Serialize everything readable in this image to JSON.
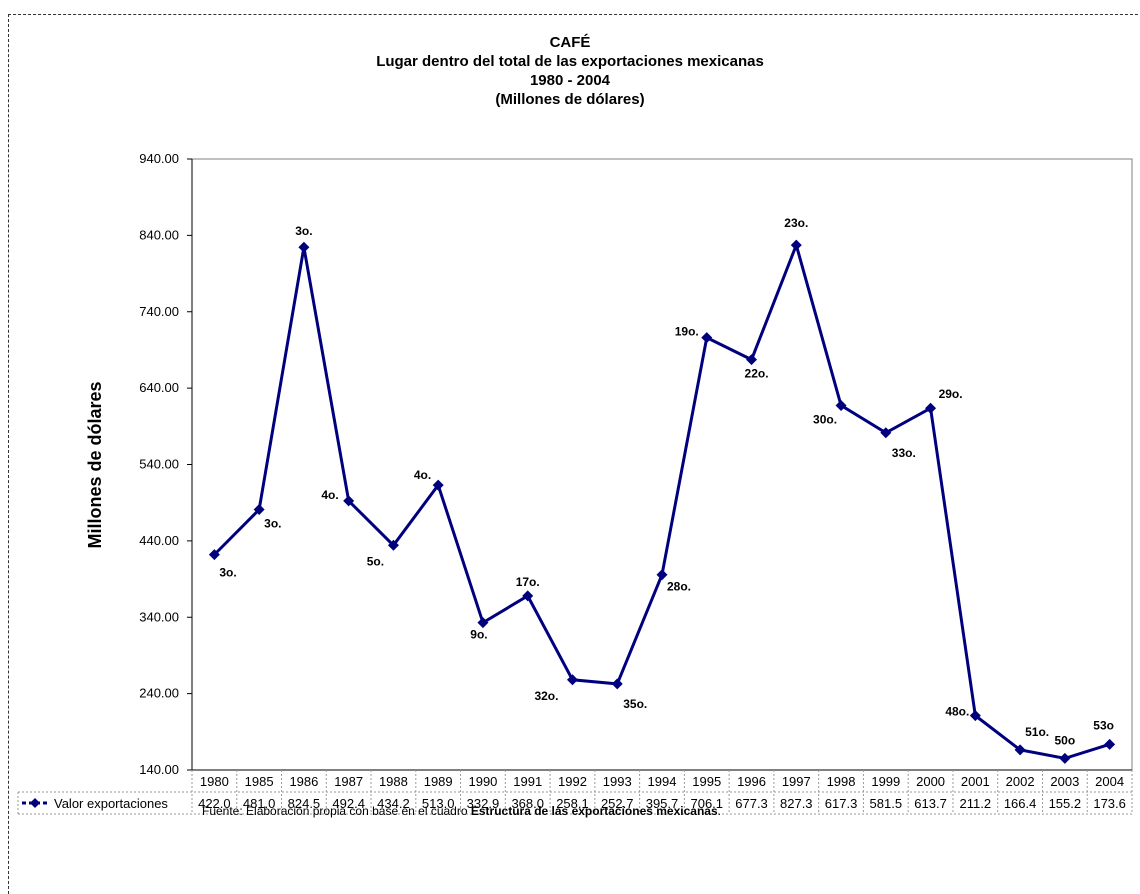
{
  "chart_data": {
    "type": "line",
    "title": "CAFÉ",
    "subtitle_lines": [
      "Lugar dentro del total de las exportaciones mexicanas",
      "1980 - 2004",
      "(Millones de dólares)"
    ],
    "ylabel": "Millones de dólares",
    "xlabel": "",
    "ylim": [
      140,
      940
    ],
    "yticks": [
      "940.00",
      "840.00",
      "740.00",
      "640.00",
      "540.00",
      "440.00",
      "340.00",
      "240.00",
      "140.00"
    ],
    "categories": [
      "1980",
      "1985",
      "1986",
      "1987",
      "1988",
      "1989",
      "1990",
      "1991",
      "1992",
      "1993",
      "1994",
      "1995",
      "1996",
      "1997",
      "1998",
      "1999",
      "2000",
      "2001",
      "2002",
      "2003",
      "2004"
    ],
    "series": [
      {
        "name": "Valor exportaciones",
        "color": "#00007f",
        "values": [
          422.0,
          481.0,
          824.5,
          492.4,
          434.2,
          513.0,
          332.9,
          368.0,
          258.1,
          252.7,
          395.7,
          706.1,
          677.3,
          827.3,
          617.3,
          581.5,
          613.7,
          211.2,
          166.4,
          155.2,
          173.6
        ],
        "table_values": [
          "422.0",
          "481.0",
          "824.5",
          "492.4",
          "434.2",
          "513.0",
          "332.9",
          "368.0",
          "258.1",
          "252.7",
          "395.7",
          "706.1",
          "677.3",
          "827.3",
          "617.3",
          "581.5",
          "613.7",
          "211.2",
          "166.4",
          "155.2",
          "173.6"
        ]
      }
    ],
    "data_labels": [
      "3o.",
      "3o.",
      "3o.",
      "4o.",
      "5o.",
      "4o.",
      "9o.",
      "17o.",
      "32o.",
      "35o.",
      "28o.",
      "19o.",
      "22o.",
      "23o.",
      "30o.",
      "33o.",
      "29o.",
      "48o.",
      "51o.",
      "50o",
      "53o"
    ],
    "grid": false,
    "legend": "data-table"
  },
  "source": {
    "prefix": "Fuente: Elaboración propia con base en el cuadro ",
    "bold": "Estructura de las exportaciones mexicanas",
    "suffix": "."
  }
}
